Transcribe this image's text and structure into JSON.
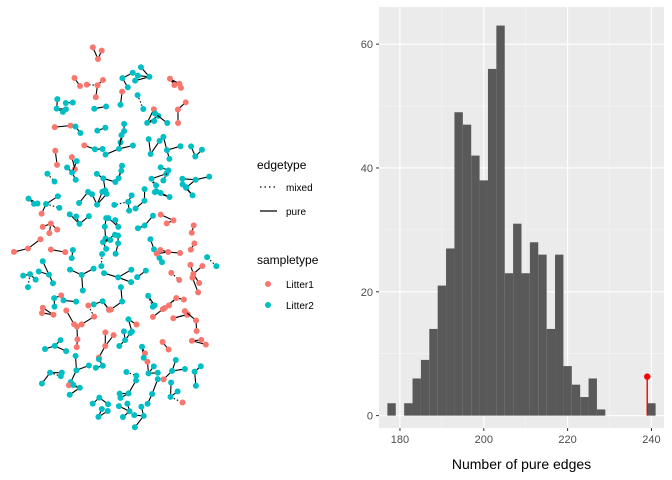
{
  "colors": {
    "litter1": "#f8766d",
    "litter2": "#00bfc4",
    "panel_bg": "#ebebeb",
    "grid_major": "#ffffff",
    "bar_fill": "#595959",
    "observed": "#ff0000",
    "edge": "#000000"
  },
  "legend": {
    "edgetype_title": "edgetype",
    "edgetype_items": [
      {
        "label": "mixed",
        "style": "dotted"
      },
      {
        "label": "pure",
        "style": "solid"
      }
    ],
    "sampletype_title": "sampletype",
    "sampletype_items": [
      {
        "label": "Litter1",
        "color": "#f8766d"
      },
      {
        "label": "Litter2",
        "color": "#00bfc4"
      }
    ]
  },
  "chart_data": [
    {
      "type": "network",
      "description_visible": "network of small connected components arranged in an oval layout; nodes colored by sampletype, edges styled by edgetype",
      "node_colors": [
        "Litter1",
        "Litter2"
      ],
      "edge_types": [
        "mixed",
        "pure"
      ]
    },
    {
      "type": "bar",
      "subtype": "histogram",
      "xlabel": "Number of pure edges",
      "ylabel": "",
      "xlim": [
        175,
        243
      ],
      "ylim": [
        -2,
        66
      ],
      "bin_width": 2,
      "xticks": [
        180,
        200,
        220,
        240
      ],
      "yticks": [
        0,
        20,
        40,
        60
      ],
      "grid": true,
      "bins": [
        {
          "x": 178,
          "count": 2
        },
        {
          "x": 182,
          "count": 2
        },
        {
          "x": 184,
          "count": 6
        },
        {
          "x": 186,
          "count": 9
        },
        {
          "x": 188,
          "count": 14
        },
        {
          "x": 190,
          "count": 21
        },
        {
          "x": 192,
          "count": 27
        },
        {
          "x": 194,
          "count": 49
        },
        {
          "x": 196,
          "count": 47
        },
        {
          "x": 198,
          "count": 42
        },
        {
          "x": 200,
          "count": 38
        },
        {
          "x": 202,
          "count": 56
        },
        {
          "x": 204,
          "count": 63
        },
        {
          "x": 206,
          "count": 23
        },
        {
          "x": 208,
          "count": 31
        },
        {
          "x": 210,
          "count": 23
        },
        {
          "x": 212,
          "count": 28
        },
        {
          "x": 214,
          "count": 26
        },
        {
          "x": 216,
          "count": 14
        },
        {
          "x": 218,
          "count": 26
        },
        {
          "x": 220,
          "count": 8
        },
        {
          "x": 222,
          "count": 5
        },
        {
          "x": 224,
          "count": 3
        },
        {
          "x": 226,
          "count": 6
        },
        {
          "x": 228,
          "count": 1
        },
        {
          "x": 240,
          "count": 2
        }
      ],
      "observed": {
        "x": 239,
        "y": 6.3
      }
    }
  ]
}
